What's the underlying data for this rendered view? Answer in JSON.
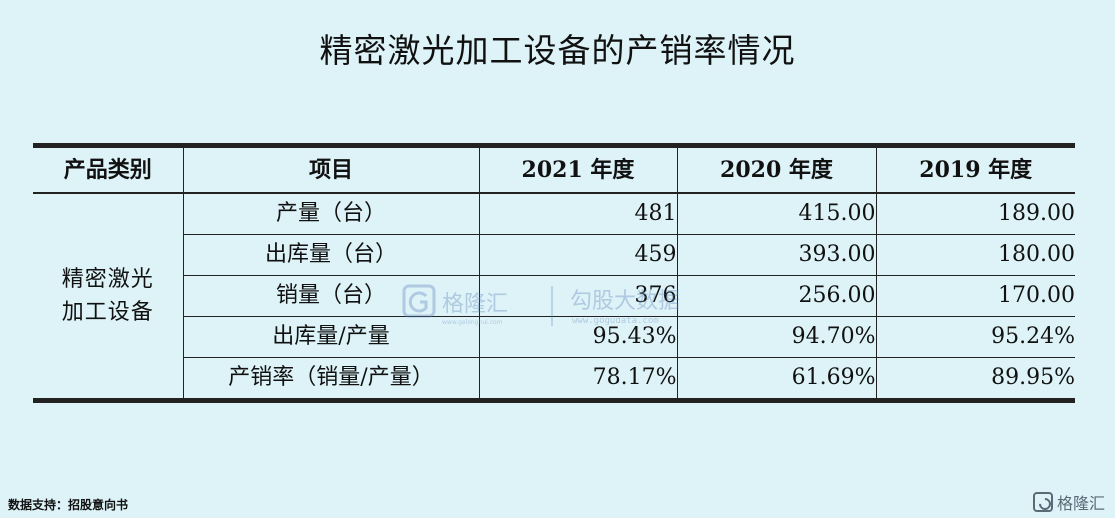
{
  "title": "精密激光加工设备的产销率情况",
  "table": {
    "headers": [
      "产品类别",
      "项目",
      "2021 年度",
      "2020 年度",
      "2019 年度"
    ],
    "category": "精密激光加工设备",
    "rows": [
      {
        "item": "产量（台）",
        "values": [
          "481",
          "415.00",
          "189.00"
        ]
      },
      {
        "item": "出库量（台）",
        "values": [
          "459",
          "393.00",
          "180.00"
        ]
      },
      {
        "item": "销量（台）",
        "values": [
          "376",
          "256.00",
          "170.00"
        ]
      },
      {
        "item": "出库量/产量",
        "values": [
          "95.43%",
          "94.70%",
          "95.24%"
        ]
      },
      {
        "item": "产销率（销量/产量）",
        "values": [
          "78.17%",
          "61.69%",
          "89.95%"
        ]
      }
    ]
  },
  "watermark": {
    "brand": "格隆汇",
    "brand_url": "www.gelonghui.com",
    "product": "勾股大数据",
    "product_url": "www.gogudata.com"
  },
  "source": "数据支持：招股意向书",
  "logo_text": "格隆汇",
  "colors": {
    "background": "#ddf3f8",
    "border": "#222222",
    "watermark": "#5b7fb8"
  }
}
